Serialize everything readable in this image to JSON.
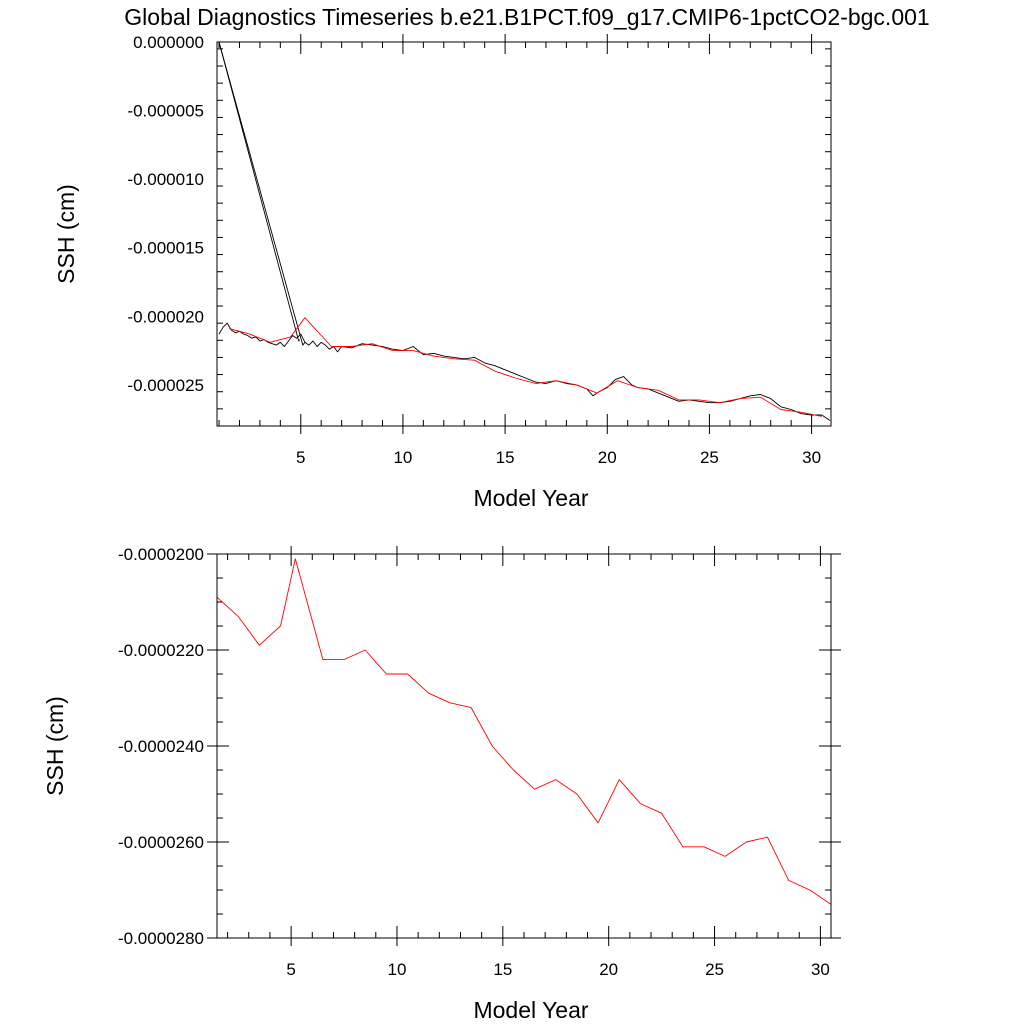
{
  "chart_data": [
    {
      "type": "line",
      "title": "Global Diagnostics Timeseries b.e21.B1PCT.f09_g17.CMIP6-1pctCO2-bgc.001",
      "xlabel": "Model Year",
      "ylabel": "SSH (cm)",
      "xlim": [
        0.9,
        30.95
      ],
      "ylim": [
        -2.8e-05,
        0.0
      ],
      "xticks": [
        5,
        10,
        15,
        20,
        25,
        30
      ],
      "xtick_labels": [
        "5",
        "10",
        "15",
        "20",
        "25",
        "30"
      ],
      "yticks": [
        0.0,
        -5e-06,
        -1e-05,
        -1.5e-05,
        -2e-05,
        -2.5e-05
      ],
      "ytick_labels": [
        "0.000000",
        "-0.000005",
        "-0.000010",
        "-0.000015",
        "-0.000020",
        "-0.000025"
      ],
      "grid": false,
      "series": [
        {
          "color": "#000000",
          "x": [
            1.0,
            1.2,
            1.4,
            1.6,
            1.8,
            2.0,
            2.2,
            2.4,
            2.6,
            2.8,
            3.0,
            3.2,
            3.4,
            3.6,
            3.8,
            4.0,
            4.2,
            4.4,
            4.6,
            4.8,
            5.0,
            5.2,
            5.4,
            5.6,
            5.8,
            6.0,
            6.2,
            6.4,
            6.6,
            6.8,
            7.0,
            7.5,
            8.0,
            8.5,
            9.0,
            9.5,
            10.0,
            10.5,
            11.0,
            11.5,
            12.0,
            12.5,
            13.0,
            13.5,
            14.0,
            14.5,
            15.0,
            15.5,
            16.0,
            16.5,
            17.0,
            17.5,
            18.0,
            18.5,
            19.0,
            19.3,
            19.6,
            20.0,
            20.4,
            20.8,
            21.2,
            21.5,
            22.0,
            22.5,
            23.0,
            23.5,
            24.0,
            24.5,
            25.0,
            25.5,
            26.0,
            26.5,
            27.0,
            27.5,
            28.0,
            28.5,
            29.0,
            29.5,
            30.0,
            30.5,
            30.9
          ],
          "y": [
            -2.13e-05,
            -2.08e-05,
            -2.05e-05,
            -2.1e-05,
            -2.12e-05,
            -2.11e-05,
            -2.13e-05,
            -2.14e-05,
            -2.16e-05,
            -2.15e-05,
            -2.18e-05,
            -2.17e-05,
            -2.19e-05,
            -2.2e-05,
            -2.21e-05,
            -2.19e-05,
            -2.22e-05,
            -2.18e-05,
            -2.14e-05,
            -2.16e-05,
            -2.13e-05,
            -2.19e-05,
            -2.21e-05,
            -2.18e-05,
            -2.22e-05,
            -2.19e-05,
            -2.21e-05,
            -2.24e-05,
            -2.22e-05,
            -2.26e-05,
            -2.22e-05,
            -2.23e-05,
            -2.2e-05,
            -2.21e-05,
            -2.22e-05,
            -2.24e-05,
            -2.25e-05,
            -2.22e-05,
            -2.28e-05,
            -2.27e-05,
            -2.29e-05,
            -2.3e-05,
            -2.31e-05,
            -2.3e-05,
            -2.34e-05,
            -2.36e-05,
            -2.39e-05,
            -2.42e-05,
            -2.45e-05,
            -2.48e-05,
            -2.49e-05,
            -2.47e-05,
            -2.49e-05,
            -2.5e-05,
            -2.53e-05,
            -2.58e-05,
            -2.55e-05,
            -2.52e-05,
            -2.46e-05,
            -2.44e-05,
            -2.5e-05,
            -2.52e-05,
            -2.53e-05,
            -2.56e-05,
            -2.59e-05,
            -2.62e-05,
            -2.61e-05,
            -2.62e-05,
            -2.63e-05,
            -2.63e-05,
            -2.62e-05,
            -2.6e-05,
            -2.58e-05,
            -2.57e-05,
            -2.6e-05,
            -2.66e-05,
            -2.68e-05,
            -2.71e-05,
            -2.72e-05,
            -2.72e-05,
            -2.76e-05
          ]
        },
        {
          "color": "#000000",
          "x": [
            1.0,
            4.9,
            4.95
          ],
          "y": [
            0.0,
            -2.18e-05,
            -2.17e-05
          ]
        },
        {
          "color": "#000000",
          "x": [
            1.0,
            5.1,
            5.2
          ],
          "y": [
            0.0,
            -2.21e-05,
            -2.19e-05
          ]
        },
        {
          "color": "#ff0000",
          "x": [
            1.5,
            2.5,
            3.5,
            4.5,
            5.2,
            6.5,
            7.5,
            8.5,
            9.5,
            10.5,
            11.5,
            12.5,
            13.5,
            14.5,
            15.5,
            16.5,
            17.5,
            18.5,
            19.5,
            20.5,
            21.5,
            22.5,
            23.5,
            24.5,
            25.5,
            26.5,
            27.5,
            28.5,
            29.5,
            30.5
          ],
          "y": [
            -2.09e-05,
            -2.13e-05,
            -2.19e-05,
            -2.15e-05,
            -2.01e-05,
            -2.22e-05,
            -2.22e-05,
            -2.2e-05,
            -2.25e-05,
            -2.25e-05,
            -2.29e-05,
            -2.31e-05,
            -2.32e-05,
            -2.4e-05,
            -2.45e-05,
            -2.49e-05,
            -2.47e-05,
            -2.5e-05,
            -2.56e-05,
            -2.47e-05,
            -2.52e-05,
            -2.54e-05,
            -2.61e-05,
            -2.61e-05,
            -2.63e-05,
            -2.6e-05,
            -2.59e-05,
            -2.68e-05,
            -2.7e-05,
            -2.73e-05
          ]
        }
      ]
    },
    {
      "type": "line",
      "xlabel": "Model Year",
      "ylabel": "SSH (cm)",
      "xlim": [
        1.5,
        30.5
      ],
      "ylim": [
        -2.8e-05,
        -2e-05
      ],
      "xticks": [
        5,
        10,
        15,
        20,
        25,
        30
      ],
      "xtick_labels": [
        "5",
        "10",
        "15",
        "20",
        "25",
        "30"
      ],
      "yticks": [
        -2e-05,
        -2.2e-05,
        -2.4e-05,
        -2.6e-05,
        -2.8e-05
      ],
      "ytick_labels": [
        "-0.0000200",
        "-0.0000220",
        "-0.0000240",
        "-0.0000260",
        "-0.0000280"
      ],
      "grid": false,
      "series": [
        {
          "color": "#ff0000",
          "x": [
            1.5,
            2.5,
            3.5,
            4.5,
            5.2,
            6.5,
            7.5,
            8.5,
            9.5,
            10.5,
            11.5,
            12.5,
            13.5,
            14.5,
            15.5,
            16.5,
            17.5,
            18.5,
            19.5,
            20.5,
            21.5,
            22.5,
            23.5,
            24.5,
            25.5,
            26.5,
            27.5,
            28.5,
            29.5,
            30.5
          ],
          "y": [
            -2.09e-05,
            -2.13e-05,
            -2.19e-05,
            -2.15e-05,
            -2.01e-05,
            -2.22e-05,
            -2.22e-05,
            -2.2e-05,
            -2.25e-05,
            -2.25e-05,
            -2.29e-05,
            -2.31e-05,
            -2.32e-05,
            -2.4e-05,
            -2.45e-05,
            -2.49e-05,
            -2.47e-05,
            -2.5e-05,
            -2.56e-05,
            -2.47e-05,
            -2.52e-05,
            -2.54e-05,
            -2.61e-05,
            -2.61e-05,
            -2.63e-05,
            -2.6e-05,
            -2.59e-05,
            -2.68e-05,
            -2.7e-05,
            -2.73e-05
          ]
        }
      ]
    }
  ]
}
